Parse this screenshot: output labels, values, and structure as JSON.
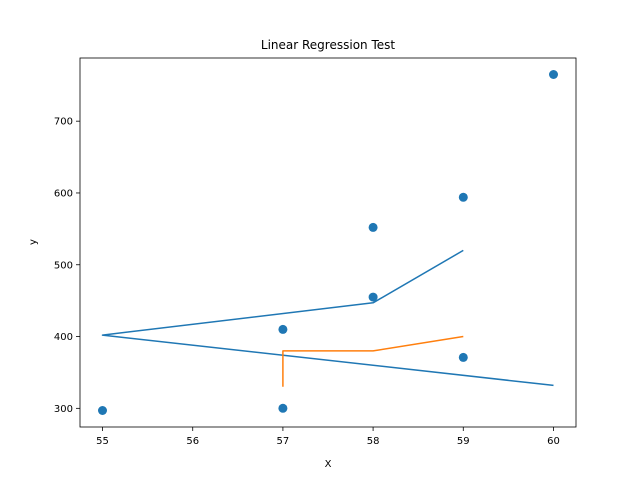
{
  "chart_data": {
    "type": "scatter",
    "title": "Linear Regression Test",
    "xlabel": "X",
    "ylabel": "y",
    "xlim": [
      54.75,
      60.25
    ],
    "ylim": [
      274,
      788
    ],
    "xticks": [
      55,
      56,
      57,
      58,
      59,
      60
    ],
    "yticks": [
      300,
      400,
      500,
      600,
      700
    ],
    "grid": false,
    "scatter": {
      "color": "#1f77b4",
      "points": [
        {
          "x": 55,
          "y": 297
        },
        {
          "x": 57,
          "y": 410
        },
        {
          "x": 57,
          "y": 300
        },
        {
          "x": 58,
          "y": 552
        },
        {
          "x": 58,
          "y": 455
        },
        {
          "x": 59,
          "y": 594
        },
        {
          "x": 59,
          "y": 371
        },
        {
          "x": 60,
          "y": 765
        }
      ]
    },
    "lines": [
      {
        "color": "#1f77b4",
        "points": [
          {
            "x": 59,
            "y": 520
          },
          {
            "x": 58,
            "y": 447
          },
          {
            "x": 55,
            "y": 402
          },
          {
            "x": 60,
            "y": 332
          }
        ]
      },
      {
        "color": "#ff7f0e",
        "points": [
          {
            "x": 57,
            "y": 330
          },
          {
            "x": 57,
            "y": 380
          },
          {
            "x": 58,
            "y": 380
          },
          {
            "x": 59,
            "y": 400
          }
        ]
      }
    ]
  }
}
